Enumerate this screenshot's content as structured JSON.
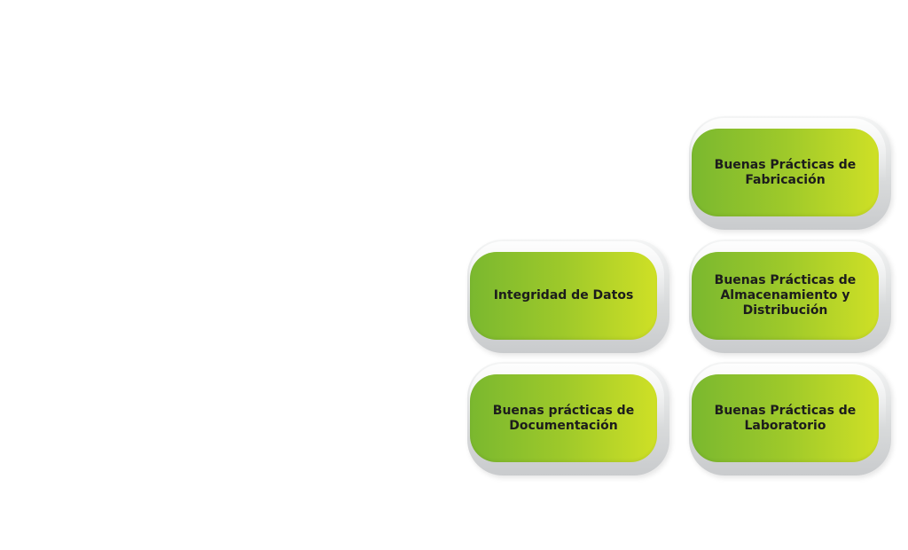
{
  "diagram": {
    "tiles": [
      {
        "id": "fabricacion",
        "label": "Buenas Prácticas de\nFabricación"
      },
      {
        "id": "integridad",
        "label": "Integridad de Datos"
      },
      {
        "id": "almacenamiento",
        "label": "Buenas Prácticas de\nAlmacenamiento y\nDistribución"
      },
      {
        "id": "documentacion",
        "label": "Buenas prácticas de\nDocumentación"
      },
      {
        "id": "laboratorio",
        "label": "Buenas Prácticas de\nLaboratorio"
      }
    ],
    "colors": {
      "button_gradient_start": "#7ab82f",
      "button_gradient_end": "#cfe026",
      "frame": "#d9dbdc",
      "text": "#1c1c1c"
    }
  }
}
